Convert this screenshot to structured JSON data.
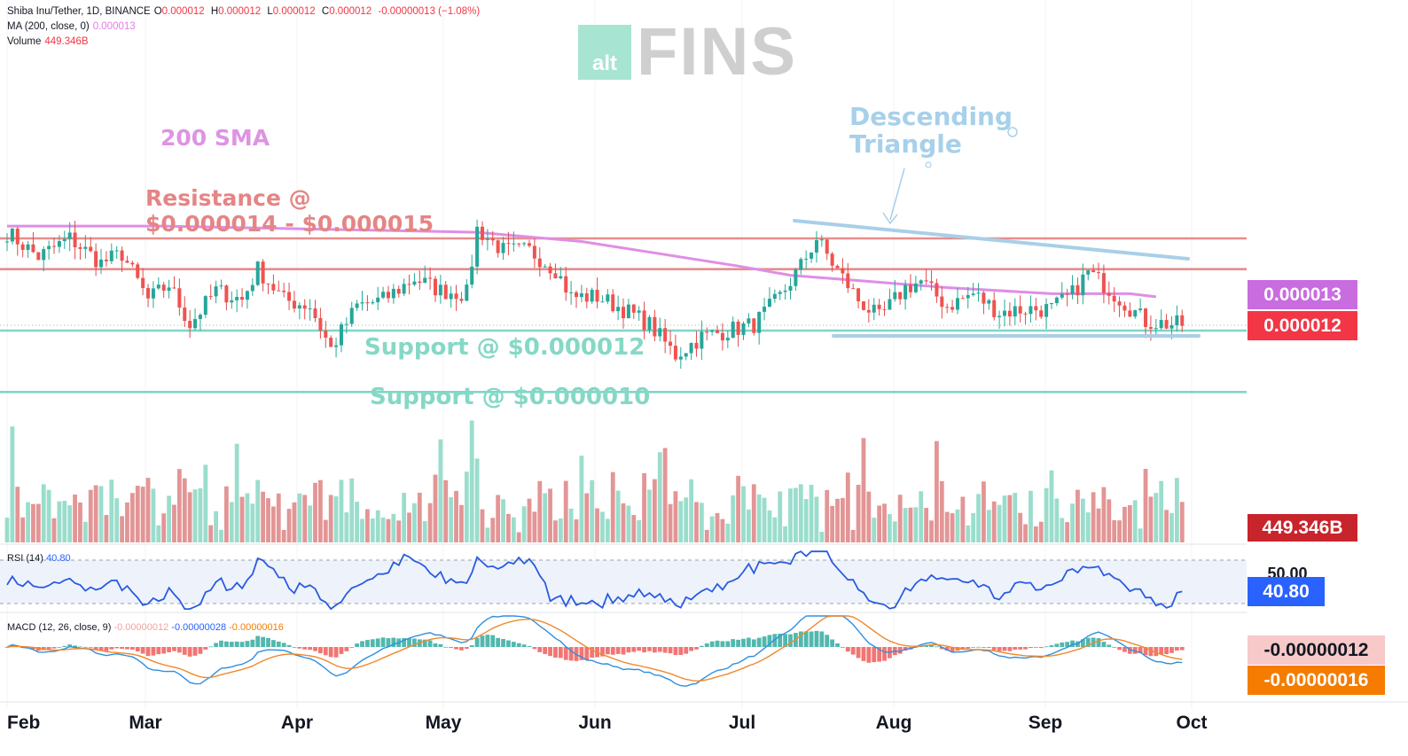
{
  "header": {
    "symbol": "Shiba Inu/Tether, 1D, BINANCE",
    "open_label": "O",
    "open": "0.000012",
    "high_label": "H",
    "high": "0.000012",
    "low_label": "L",
    "low": "0.000012",
    "close_label": "C",
    "close": "0.000012",
    "change": "-0.00000013 (−1.08%)",
    "ma_label": "MA (200, close, 0)",
    "ma_value": "0.000013",
    "volume_label": "Volume",
    "volume_value": "449.346B"
  },
  "logo": {
    "small": "alt",
    "big": "FINS"
  },
  "annotations": {
    "sma": "200 SMA",
    "resistance_line1": "Resistance @",
    "resistance_line2": "$0.000014 - $0.000015",
    "support1": "Support @ $0.000012",
    "support2": "Support @ $0.000010",
    "triangle_line1": "Descending",
    "triangle_line2": "Triangle"
  },
  "price_tags": {
    "ma": "0.000013",
    "last": "0.000012",
    "volume": "449.346B",
    "rsi": "40.80",
    "rsi_hidden": "50.00",
    "macd": "-0.00000012",
    "signal": "-0.00000016"
  },
  "rsi_pane": {
    "label": "RSI (14)",
    "value": "40.80"
  },
  "macd_pane": {
    "label": "MACD (12, 26, close, 9)",
    "hist": "-0.00000012",
    "macd": "-0.00000028",
    "signal": "-0.00000016"
  },
  "colors": {
    "up": "#8fd9c6",
    "down": "#e08a8a",
    "sma": "#df8ee6",
    "resistance": "#e88d8d",
    "support": "#7fd6c6",
    "triangle": "#a9cfe8",
    "rsi": "#2a5be0",
    "macd": "#2f8fe0",
    "signal": "#f0892c",
    "tag_ma": "#c96ce0",
    "tag_last": "#f23645",
    "tag_volume": "#c8242c",
    "tag_rsi": "#2962ff",
    "tag_macd": "#f7c9c9",
    "tag_signal": "#f57c00"
  },
  "chart_data": {
    "type": "candlestick",
    "x_axis": {
      "ticks": [
        "Feb",
        "Mar",
        "Apr",
        "May",
        "Jun",
        "Jul",
        "Aug",
        "Sep",
        "Oct"
      ]
    },
    "price_levels": {
      "resistance": [
        1.5e-05,
        1.4e-05
      ],
      "support": [
        1.2e-05,
        1e-05
      ]
    },
    "anchors": [
      [
        0,
        1.52e-05
      ],
      [
        6,
        1.44e-05
      ],
      [
        12,
        1.5e-05
      ],
      [
        18,
        1.42e-05
      ],
      [
        22,
        1.45e-05
      ],
      [
        27,
        1.3e-05
      ],
      [
        31,
        1.35e-05
      ],
      [
        35,
        1.22e-05
      ],
      [
        40,
        1.33e-05
      ],
      [
        45,
        1.3e-05
      ],
      [
        48,
        1.4e-05
      ],
      [
        53,
        1.3e-05
      ],
      [
        58,
        1.28e-05
      ],
      [
        62,
        1.14e-05
      ],
      [
        67,
        1.28e-05
      ],
      [
        72,
        1.3e-05
      ],
      [
        78,
        1.37e-05
      ],
      [
        83,
        1.33e-05
      ],
      [
        88,
        1.32e-05
      ],
      [
        90,
        1.53e-05
      ],
      [
        95,
        1.46e-05
      ],
      [
        100,
        1.46e-05
      ],
      [
        105,
        1.4e-05
      ],
      [
        108,
        1.31e-05
      ],
      [
        113,
        1.31e-05
      ],
      [
        118,
        1.27e-05
      ],
      [
        123,
        1.22e-05
      ],
      [
        128,
        1.12e-05
      ],
      [
        133,
        1.18e-05
      ],
      [
        138,
        1.2e-05
      ],
      [
        143,
        1.22e-05
      ],
      [
        148,
        1.31e-05
      ],
      [
        152,
        1.41e-05
      ],
      [
        155,
        1.5e-05
      ],
      [
        158,
        1.42e-05
      ],
      [
        163,
        1.3e-05
      ],
      [
        167,
        1.24e-05
      ],
      [
        172,
        1.34e-05
      ],
      [
        175,
        1.36e-05
      ],
      [
        180,
        1.28e-05
      ],
      [
        185,
        1.32e-05
      ],
      [
        190,
        1.26e-05
      ],
      [
        195,
        1.27e-05
      ],
      [
        200,
        1.27e-05
      ],
      [
        204,
        1.32e-05
      ],
      [
        207,
        1.39e-05
      ],
      [
        210,
        1.35e-05
      ],
      [
        214,
        1.29e-05
      ],
      [
        218,
        1.23e-05
      ],
      [
        223,
        1.22e-05
      ],
      [
        225,
        1.22e-05
      ]
    ],
    "sma_200": [
      [
        0,
        1.54e-05
      ],
      [
        30,
        1.54e-05
      ],
      [
        60,
        1.53e-05
      ],
      [
        90,
        1.52e-05
      ],
      [
        110,
        1.49e-05
      ],
      [
        125,
        1.45e-05
      ],
      [
        140,
        1.41e-05
      ],
      [
        150,
        1.38e-05
      ],
      [
        165,
        1.36e-05
      ],
      [
        180,
        1.34e-05
      ],
      [
        200,
        1.32e-05
      ],
      [
        215,
        1.32e-05
      ],
      [
        220,
        1.31e-05
      ]
    ],
    "volume": {
      "last": "449.346B"
    },
    "rsi": {
      "period": 14,
      "last": 40.8,
      "levels": [
        70,
        30
      ]
    },
    "macd": {
      "params": [
        12,
        26,
        9
      ],
      "hist": -1.2e-07,
      "macd": -2.8e-07,
      "signal": -1.6e-07
    }
  }
}
